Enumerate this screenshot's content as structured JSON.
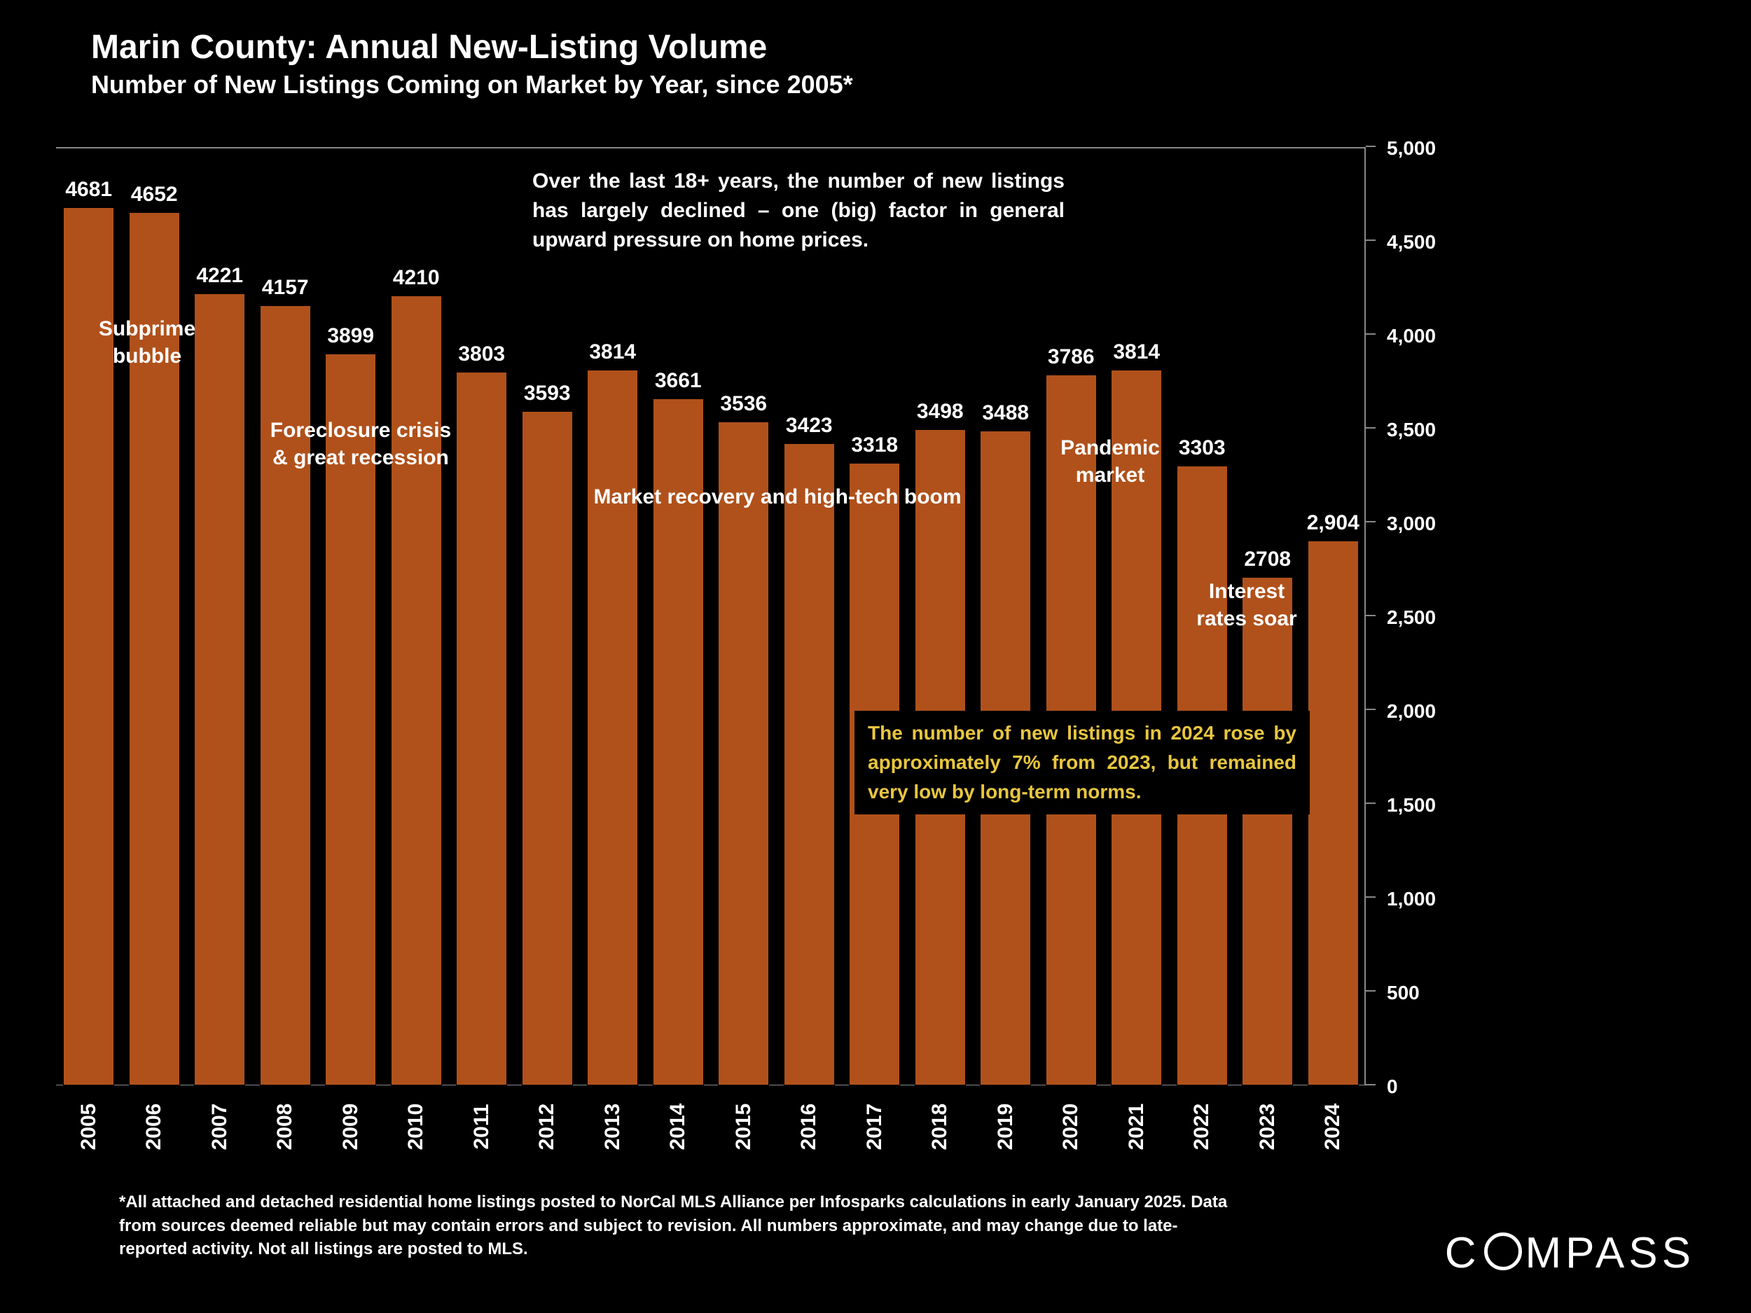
{
  "title": "Marin County: Annual New-Listing Volume",
  "subtitle": "Number of New Listings Coming on Market by Year, since 2005*",
  "chart": {
    "type": "bar",
    "background_color": "#000000",
    "bar_color": "#b0511b",
    "text_color": "#ffffff",
    "grid_color": "#888888",
    "years": [
      "2005",
      "2006",
      "2007",
      "2008",
      "2009",
      "2010",
      "2011",
      "2012",
      "2013",
      "2014",
      "2015",
      "2016",
      "2017",
      "2018",
      "2019",
      "2020",
      "2021",
      "2022",
      "2023",
      "2024"
    ],
    "values": [
      4681,
      4652,
      4221,
      4157,
      3899,
      4210,
      3803,
      3593,
      3814,
      3661,
      3536,
      3423,
      3318,
      3498,
      3488,
      3786,
      3814,
      3303,
      2708,
      2904
    ],
    "value_labels": [
      "4681",
      "4652",
      "4221",
      "4157",
      "3899",
      "4210",
      "3803",
      "3593",
      "3814",
      "3661",
      "3536",
      "3423",
      "3318",
      "3498",
      "3488",
      "3786",
      "3814",
      "3303",
      "2708",
      "2,904"
    ],
    "ylim": [
      0,
      5000
    ],
    "ytick_step": 500,
    "yticks": [
      "0",
      "500",
      "1,000",
      "1,500",
      "2,000",
      "2,500",
      "3,000",
      "3,500",
      "4,000",
      "4,500",
      "5,000"
    ],
    "bar_width_ratio": 0.78,
    "bar_label_fontsize": 30,
    "axis_fontsize": 28
  },
  "description": "Over the last 18+ years, the number of new listings has largely declined – one (big) factor in general upward pressure on home prices.",
  "annotations": {
    "subprime": "Subprime\nbubble",
    "foreclosure": "Foreclosure crisis\n& great recession",
    "recovery": "Market recovery and high-tech boom",
    "pandemic": "Pandemic\nmarket",
    "interest": "Interest\nrates soar"
  },
  "callout": {
    "text": "The number of new listings in 2024 rose by approximately 7% from 2023, but remained very low by long-term norms.",
    "color": "#e8c63f"
  },
  "footnote": "*All attached and detached residential home listings posted to NorCal MLS Alliance per Infosparks calculations in early January 2025. Data from sources deemed reliable but may contain errors and subject to revision. All numbers approximate, and may change due to late-reported activity. Not all listings are posted to MLS.",
  "logo": "COMPASS"
}
